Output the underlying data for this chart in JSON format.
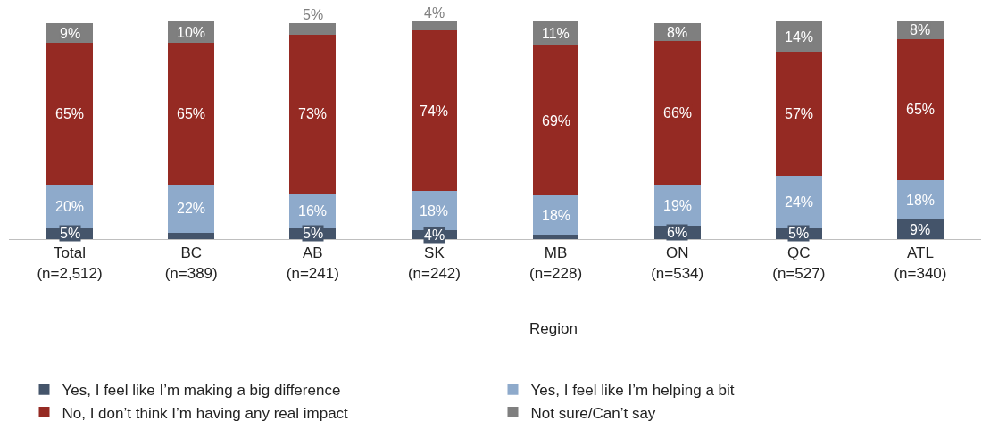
{
  "chart_data": {
    "type": "bar",
    "stacked": true,
    "tick_labels": "x",
    "legend": "bottom",
    "ylim": [
      0,
      100
    ],
    "categories": [
      "Total\n(n=2,512)",
      "BC\n(n=389)",
      "AB\n(n=241)",
      "SK\n(n=242)",
      "MB\n(n=228)",
      "ON\n(n=534)",
      "QC\n(n=527)",
      "ATL\n(n=340)"
    ],
    "annotations": [
      "Region"
    ],
    "series": [
      {
        "name": "Yes, I feel like I’m making a big difference",
        "color": "#44546a",
        "values": [
          5,
          3,
          5,
          4,
          2,
          6,
          5,
          9
        ],
        "value_labels": [
          "5%",
          null,
          "5%",
          "4%",
          null,
          "6%",
          "5%",
          "9%"
        ]
      },
      {
        "name": "Yes, I feel like I’m helping a bit",
        "color": "#8eaacb",
        "values": [
          20,
          22,
          16,
          18,
          18,
          19,
          24,
          18
        ],
        "value_labels": [
          "20%",
          "22%",
          "16%",
          "18%",
          "18%",
          "19%",
          "24%",
          "18%"
        ]
      },
      {
        "name": "No, I don’t think I’m having any real impact",
        "color": "#952a23",
        "values": [
          65,
          65,
          73,
          74,
          69,
          66,
          57,
          65
        ],
        "value_labels": [
          "65%",
          "65%",
          "73%",
          "74%",
          "69%",
          "66%",
          "57%",
          "65%"
        ]
      },
      {
        "name": "Not sure/Can’t say",
        "color": "#7f7f7f",
        "values": [
          9,
          10,
          5,
          4,
          11,
          8,
          14,
          8
        ],
        "value_labels": [
          "9%",
          "10%",
          "5%",
          "4%",
          "11%",
          "8%",
          "14%",
          "8%"
        ]
      }
    ]
  }
}
